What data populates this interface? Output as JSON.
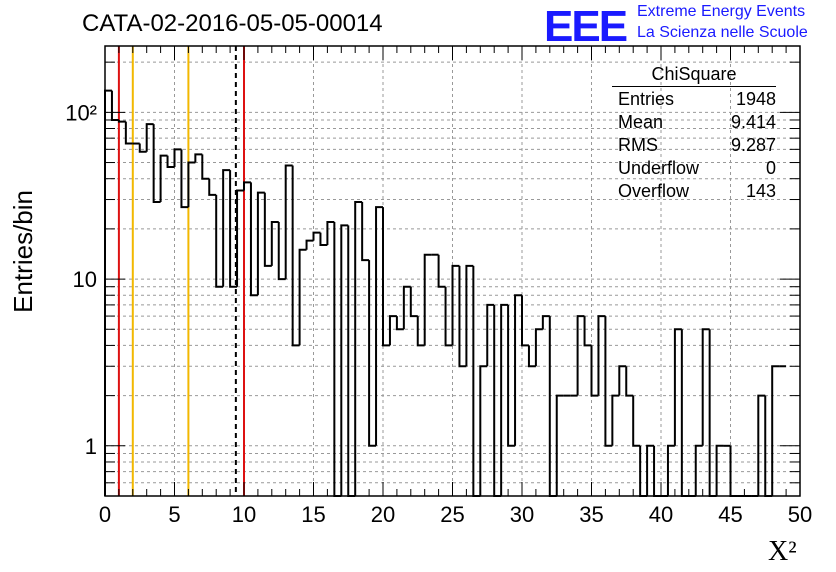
{
  "header": {
    "title": "CATA-02-2016-05-05-00014",
    "logo_text": "EEE",
    "logo_line1": "Extreme Energy Events",
    "logo_line2": "La Scienza nelle Scuole",
    "brand_color": "#1a1aff"
  },
  "stats_box": {
    "title": "ChiSquare",
    "rows": [
      {
        "label": "Entries",
        "value": "1948"
      },
      {
        "label": "Mean",
        "value": "9.414"
      },
      {
        "label": "RMS",
        "value": "9.287"
      },
      {
        "label": "Underflow",
        "value": "0"
      },
      {
        "label": "Overflow",
        "value": "143"
      }
    ]
  },
  "chart_data": {
    "type": "bar",
    "histogram": true,
    "xlabel": "X²",
    "ylabel": "Entries/bin",
    "xlim": [
      0,
      50
    ],
    "ylim": [
      0.5,
      250
    ],
    "yscale": "log",
    "grid": true,
    "bin_width": 0.5,
    "x_ticks": [
      "0",
      "5",
      "10",
      "15",
      "20",
      "25",
      "30",
      "35",
      "40",
      "45",
      "50"
    ],
    "y_ticks": [
      {
        "value": 1,
        "label": "1"
      },
      {
        "value": 10,
        "label": "10"
      },
      {
        "value": 100,
        "label": "10²"
      }
    ],
    "values": [
      135,
      90,
      88,
      65,
      65,
      58,
      85,
      29,
      55,
      47,
      60,
      27,
      50,
      56,
      40,
      32,
      9,
      45,
      9,
      34,
      38,
      8,
      33,
      12,
      22,
      10,
      48,
      4,
      15,
      17,
      19,
      16,
      22,
      0.5,
      21,
      0.5,
      29,
      13,
      1,
      27,
      4,
      6,
      5,
      9,
      6,
      4,
      14,
      14,
      9,
      4,
      12,
      3,
      12,
      0.5,
      3,
      7,
      0.5,
      7,
      1,
      8,
      4,
      3,
      5,
      6,
      0.5,
      2,
      2,
      2,
      6,
      4,
      2,
      6,
      1,
      2,
      3,
      2,
      1,
      0.5,
      1,
      0.5,
      0.5,
      1,
      5,
      0.5,
      0.5,
      1,
      5,
      0.5,
      1,
      1,
      0.5,
      0.5,
      0.5,
      0.5,
      2,
      0.5,
      3,
      3
    ],
    "vertical_lines": [
      {
        "x": 1,
        "color": "#dd1111",
        "style": "solid"
      },
      {
        "x": 2,
        "color": "#f2b800",
        "style": "solid"
      },
      {
        "x": 6,
        "color": "#f2b800",
        "style": "solid"
      },
      {
        "x": 9.414,
        "color": "#000000",
        "style": "dashed"
      },
      {
        "x": 10,
        "color": "#dd1111",
        "style": "solid"
      }
    ]
  }
}
